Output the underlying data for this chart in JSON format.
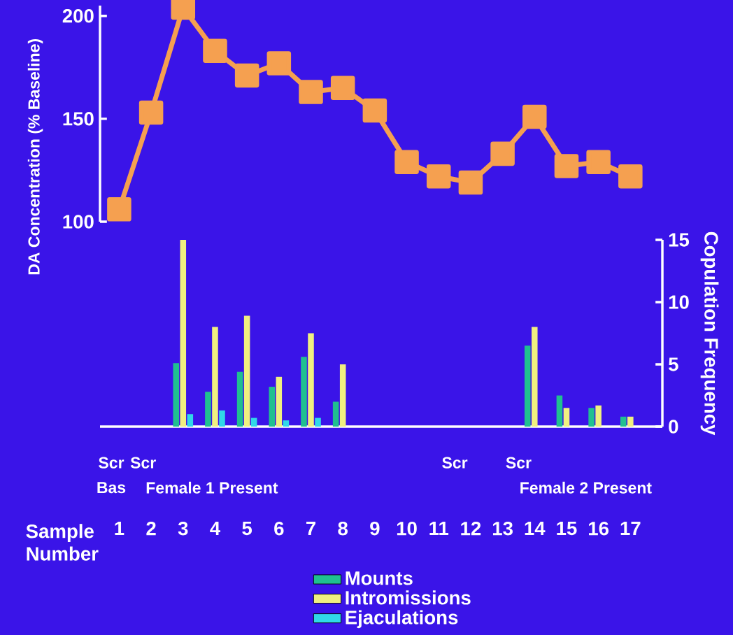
{
  "chart_data": [
    {
      "type": "line",
      "ylabel": "DA Concentration (% Baseline)",
      "categories": [
        "1",
        "2",
        "3",
        "4",
        "5",
        "6",
        "7",
        "8",
        "9",
        "10",
        "11",
        "12",
        "13",
        "14",
        "15",
        "16",
        "17"
      ],
      "tick_labels": "y",
      "ylim": [
        100,
        205
      ],
      "yticks": [
        100,
        150,
        200
      ],
      "marker": "square",
      "line_style": "solid",
      "series": [
        {
          "color": "#f5a050",
          "values": [
            106,
            153,
            204,
            183,
            171,
            177,
            163,
            165,
            154,
            129,
            122,
            119,
            133,
            151,
            127,
            129,
            122
          ]
        }
      ]
    },
    {
      "type": "bar",
      "ylabel": "Copulation Frequency",
      "xlabel": "Sample Number",
      "categories": [
        "1",
        "2",
        "3",
        "4",
        "5",
        "6",
        "7",
        "8",
        "9",
        "10",
        "11",
        "12",
        "13",
        "14",
        "15",
        "16",
        "17"
      ],
      "ylim": [
        0,
        15
      ],
      "yticks": [
        0,
        5,
        10,
        15
      ],
      "legend": "bottom",
      "annotations": [
        "Scr",
        "Scr",
        "Bas",
        "Female 1 Present",
        "Scr",
        "Scr",
        "Female 2 Present"
      ],
      "series": [
        {
          "name": "Mounts",
          "color": "#20c090",
          "values": [
            0,
            0,
            5.1,
            2.8,
            4.4,
            3.2,
            5.6,
            2,
            0,
            0,
            0,
            0,
            0,
            6.5,
            2.5,
            1.5,
            0.8
          ]
        },
        {
          "name": "Intromissions",
          "color": "#f0f080",
          "values": [
            0,
            0,
            15,
            8,
            8.9,
            4,
            7.5,
            5,
            0,
            0,
            0,
            0,
            0,
            8,
            1.5,
            1.7,
            0.8
          ]
        },
        {
          "name": "Ejaculations",
          "color": "#30d8e8",
          "values": [
            0,
            0,
            1,
            1.3,
            0.7,
            0.5,
            0.7,
            0,
            0,
            0,
            0,
            0,
            0,
            0,
            0,
            0,
            0
          ]
        }
      ]
    }
  ]
}
